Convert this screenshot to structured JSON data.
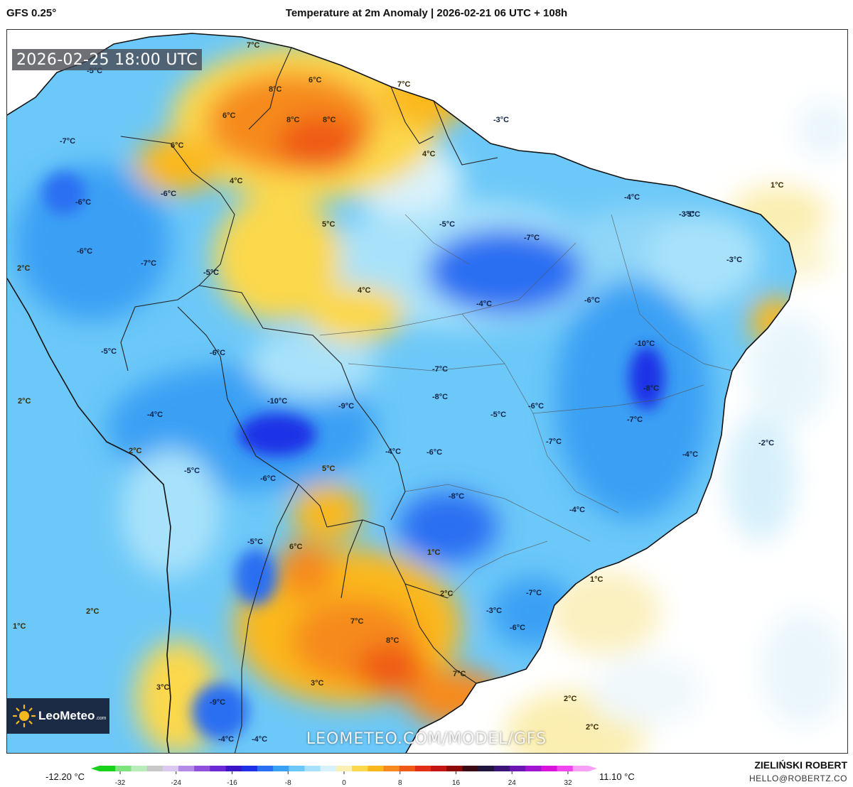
{
  "header": {
    "model": "GFS 0.25°",
    "title": "Temperature at 2m Anomaly | 2026-02-21 06 UTC + 108h"
  },
  "valid_time": "2026-02-25 18:00 UTC",
  "logo": {
    "name": "LeoMeteo",
    "suffix": ".com"
  },
  "watermark": "LEOMETEO.COM/MODEL/GFS",
  "colorbar": {
    "min_label": "-12.20 °C",
    "max_label": "11.10 °C",
    "ticks": [
      "-32",
      "-24",
      "-16",
      "-8",
      "0",
      "8",
      "16",
      "24",
      "32"
    ],
    "colors": [
      "#19d119",
      "#7de47d",
      "#b8ecb8",
      "#c8c8c8",
      "#dcc8f0",
      "#b48ce6",
      "#9050dc",
      "#6c28d2",
      "#3c14c8",
      "#1e30e6",
      "#2a6ef2",
      "#3aa0f4",
      "#6cc8f8",
      "#a8e2fa",
      "#d8f2fc",
      "#fbf0b4",
      "#fcd84c",
      "#fbb81e",
      "#f68a1e",
      "#ef5a16",
      "#e22e16",
      "#c41414",
      "#8c0a0a",
      "#3c0a14",
      "#1e143c",
      "#3c1478",
      "#6c14b4",
      "#a014d2",
      "#d814dc",
      "#f046f0",
      "#f8a0f8"
    ]
  },
  "author": {
    "name": "ZIELIŃSKI ROBERT",
    "email": "HELLO@ROBERTZ.CO"
  },
  "map_labels": [
    "7°C",
    "-5°C",
    "8°C",
    "6°C",
    "7°C",
    "6°C",
    "8°C",
    "8°C",
    "-3°C",
    "6°C",
    "-7°C",
    "4°C",
    "-6°C",
    "-6°C",
    "4°C",
    "-4°C",
    "-3°C",
    "1°C",
    "5°C",
    "-5°C",
    "-7°C",
    "-6°C",
    "-7°C",
    "-5°C",
    "-3°C",
    "2°C",
    "4°C",
    "-4°C",
    "-5°C",
    "-6°C",
    "-6°C",
    "-5°C",
    "-10°C",
    "-7°C",
    "-8°C",
    "-10°C",
    "-9°C",
    "-8°C",
    "-5°C",
    "-6°C",
    "-7°C",
    "-4°C",
    "2°C",
    "-4°C",
    "-6°C",
    "-7°C",
    "2°C",
    "-2°C",
    "-4°C",
    "5°C",
    "-5°C",
    "-6°C",
    "-8°C",
    "-4°C",
    "-5°C",
    "6°C",
    "1°C",
    "1°C",
    "2°C",
    "-7°C",
    "-3°C",
    "-6°C",
    "7°C",
    "8°C",
    "2°C",
    "1°C",
    "7°C",
    "3°C",
    "-9°C",
    "2°C",
    "3°C",
    "-4°C",
    "-4°C",
    "2°C"
  ],
  "map_label_colors": {
    "warm": "#3a2a00",
    "cool": "#10244a"
  }
}
